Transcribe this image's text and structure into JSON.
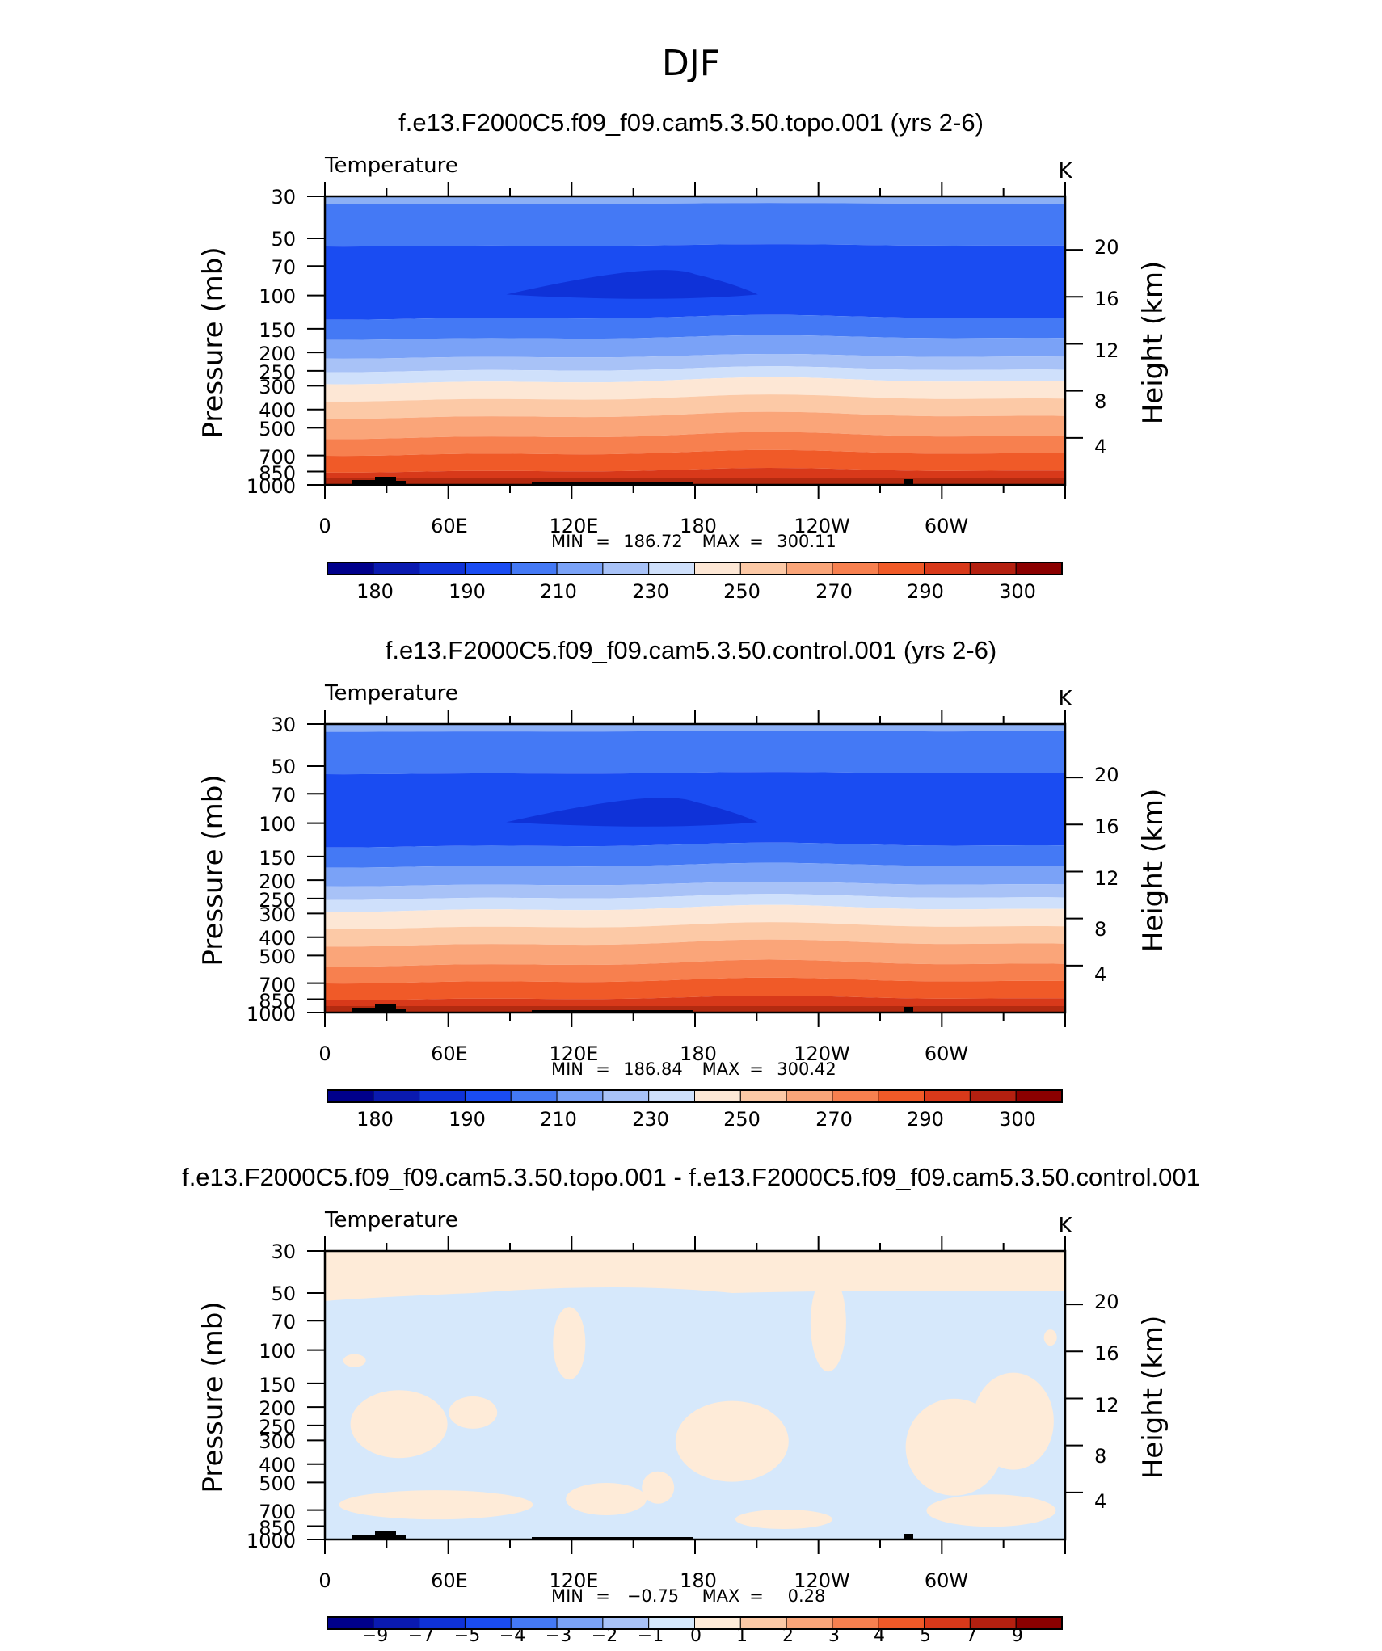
{
  "supertitle": "DJF",
  "colors": {
    "temperature_levels": [
      "#00008b",
      "#0a1ab0",
      "#0f32d8",
      "#1a4cf2",
      "#4479f5",
      "#7aa2f7",
      "#a8c2f7",
      "#cfe0fb",
      "#fde7d5",
      "#fcc9a6",
      "#faa579",
      "#f7804f",
      "#f05a28",
      "#d8391a",
      "#b42010",
      "#8b0000"
    ],
    "difference_levels": [
      "#00008b",
      "#0a1ab0",
      "#0f32d8",
      "#1a4cf2",
      "#4479f5",
      "#7aa2f7",
      "#a8c2f7",
      "#d6e8fb",
      "#feebd8",
      "#fcc9a6",
      "#faa579",
      "#f7804f",
      "#f05a28",
      "#d8391a",
      "#b42010",
      "#8b0000"
    ],
    "topography": "#000000"
  },
  "chart_data": [
    {
      "type": "heatmap",
      "title": "f.e13.F2000C5.f09_f09.cam5.3.50.topo.001 (yrs 2-6)",
      "left_string": "Temperature",
      "right_string": "K",
      "ylabel": "Pressure (mb)",
      "ylabel_right": "Height (km)",
      "x_ticks": [
        "0",
        "60E",
        "120E",
        "180",
        "120W",
        "60W"
      ],
      "y_ticks": [
        "30",
        "50",
        "70",
        "100",
        "150",
        "200",
        "250",
        "300",
        "400",
        "500",
        "700",
        "850",
        "1000"
      ],
      "y_right_ticks": [
        "20",
        "16",
        "12",
        "8",
        "4"
      ],
      "stats": {
        "min_label": "MIN",
        "min": "186.72",
        "max_label": "MAX",
        "max": "300.11"
      },
      "colorbar_labels": [
        "180",
        "190",
        "210",
        "230",
        "250",
        "270",
        "290",
        "300"
      ],
      "ylim": [
        1000,
        30
      ],
      "xlim": [
        0,
        360
      ],
      "y_scale": "log"
    },
    {
      "type": "heatmap",
      "title": "f.e13.F2000C5.f09_f09.cam5.3.50.control.001 (yrs 2-6)",
      "left_string": "Temperature",
      "right_string": "K",
      "ylabel": "Pressure (mb)",
      "ylabel_right": "Height (km)",
      "x_ticks": [
        "0",
        "60E",
        "120E",
        "180",
        "120W",
        "60W"
      ],
      "y_ticks": [
        "30",
        "50",
        "70",
        "100",
        "150",
        "200",
        "250",
        "300",
        "400",
        "500",
        "700",
        "850",
        "1000"
      ],
      "y_right_ticks": [
        "20",
        "16",
        "12",
        "8",
        "4"
      ],
      "stats": {
        "min_label": "MIN",
        "min": "186.84",
        "max_label": "MAX",
        "max": "300.42"
      },
      "colorbar_labels": [
        "180",
        "190",
        "210",
        "230",
        "250",
        "270",
        "290",
        "300"
      ],
      "ylim": [
        1000,
        30
      ],
      "xlim": [
        0,
        360
      ],
      "y_scale": "log"
    },
    {
      "type": "heatmap",
      "title": "f.e13.F2000C5.f09_f09.cam5.3.50.topo.001 - f.e13.F2000C5.f09_f09.cam5.3.50.control.001",
      "left_string": "Temperature",
      "right_string": "K",
      "ylabel": "Pressure (mb)",
      "ylabel_right": "Height (km)",
      "x_ticks": [
        "0",
        "60E",
        "120E",
        "180",
        "120W",
        "60W"
      ],
      "y_ticks": [
        "30",
        "50",
        "70",
        "100",
        "150",
        "200",
        "250",
        "300",
        "400",
        "500",
        "700",
        "850",
        "1000"
      ],
      "y_right_ticks": [
        "20",
        "16",
        "12",
        "8",
        "4"
      ],
      "stats": {
        "min_label": "MIN",
        "min": "−0.75",
        "max_label": "MAX",
        "max": "0.28"
      },
      "colorbar_labels": [
        "−9",
        "−7",
        "−5",
        "−4",
        "−3",
        "−2",
        "−1",
        "0",
        "1",
        "2",
        "3",
        "4",
        "5",
        "7",
        "9"
      ],
      "ylim": [
        1000,
        30
      ],
      "xlim": [
        0,
        360
      ],
      "y_scale": "log"
    }
  ]
}
